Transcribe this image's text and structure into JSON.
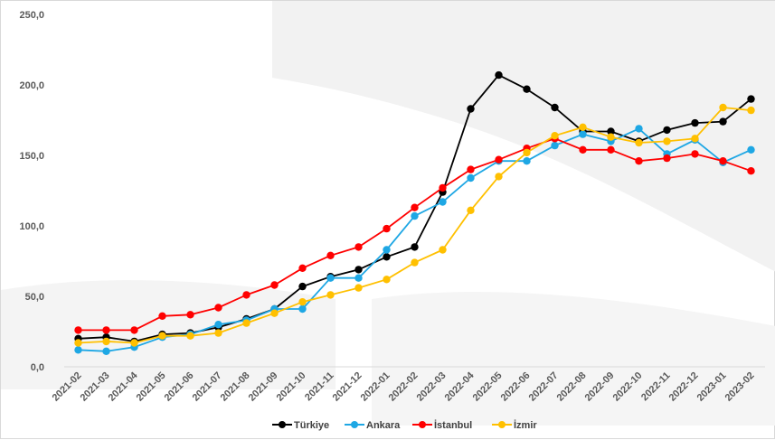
{
  "chart_data": {
    "type": "line",
    "title": "",
    "xlabel": "",
    "ylabel": "",
    "ylim": [
      0,
      250
    ],
    "yticks": [
      0,
      50,
      100,
      150,
      200,
      250
    ],
    "ytick_labels": [
      "0,0",
      "50,0",
      "100,0",
      "150,0",
      "200,0",
      "250,0"
    ],
    "grid": false,
    "legend_position": "bottom",
    "categories": [
      "2021-02",
      "2021-03",
      "2021-04",
      "2021-05",
      "2021-06",
      "2021-07",
      "2021-08",
      "2021-09",
      "2021-10",
      "2021-11",
      "2021-12",
      "2022-01",
      "2022-02",
      "2022-03",
      "2022-04",
      "2022-05",
      "2022-06",
      "2022-07",
      "2022-08",
      "2022-09",
      "2022-10",
      "2022-11",
      "2022-12",
      "2023-01",
      "2023-02"
    ],
    "series": [
      {
        "name": "Türkiye",
        "color": "#000000",
        "values": [
          20,
          21,
          18,
          23,
          24,
          28,
          34,
          41,
          57,
          64,
          69,
          78,
          85,
          124,
          183,
          207,
          197,
          184,
          167,
          167,
          160,
          168,
          173,
          174,
          190
        ]
      },
      {
        "name": "Ankara",
        "color": "#1ea7e4",
        "values": [
          12,
          11,
          14,
          21,
          23,
          30,
          33,
          41,
          41,
          63,
          63,
          83,
          107,
          117,
          134,
          146,
          146,
          157,
          165,
          160,
          169,
          151,
          161,
          145,
          154
        ]
      },
      {
        "name": "İstanbul",
        "color": "#ff0000",
        "values": [
          26,
          26,
          26,
          36,
          37,
          42,
          51,
          58,
          70,
          79,
          85,
          98,
          113,
          127,
          140,
          147,
          155,
          162,
          154,
          154,
          146,
          148,
          151,
          146,
          139
        ]
      },
      {
        "name": "İzmir",
        "color": "#ffc000",
        "values": [
          17,
          18,
          17,
          22,
          22,
          24,
          31,
          38,
          46,
          51,
          56,
          62,
          74,
          83,
          111,
          135,
          152,
          164,
          170,
          163,
          159,
          160,
          162,
          184,
          182
        ]
      }
    ]
  }
}
